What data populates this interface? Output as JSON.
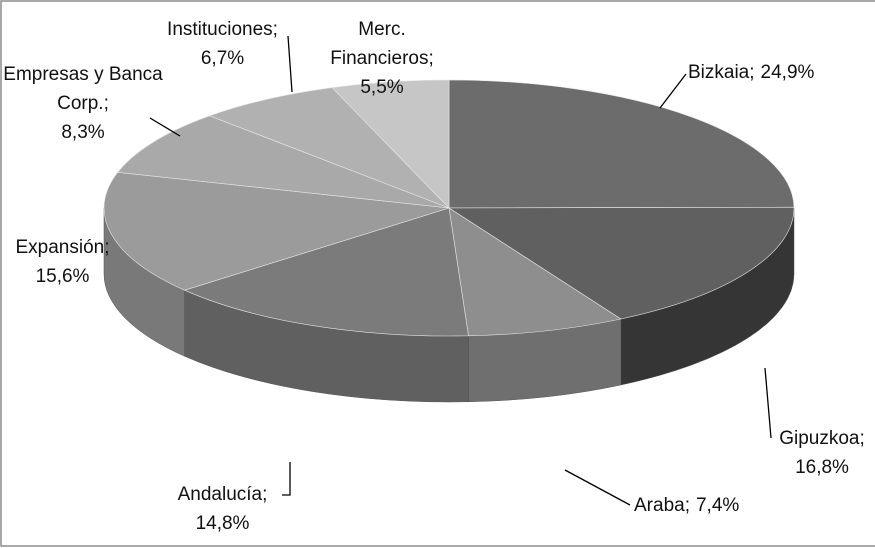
{
  "chart_data": {
    "type": "pie3d",
    "categories": [
      "Bizkaia;",
      "Gipuzkoa;",
      "Araba;",
      "Andalucía;",
      "Expansión;",
      "Empresas y Banca Corp.;",
      "Instituciones;",
      "Merc. Financieros;"
    ],
    "values": [
      24.9,
      16.8,
      7.4,
      14.8,
      15.6,
      8.3,
      6.7,
      5.5
    ],
    "value_labels": [
      "24,9%",
      "16,8%",
      "7,4%",
      "14,8%",
      "15,6%",
      "8,3%",
      "6,7%",
      "5,5%"
    ],
    "colors": [
      "#6c6c6c",
      "#606060",
      "#8e8e8e",
      "#7b7b7b",
      "#9b9b9b",
      "#a9a9a9",
      "#b1b1b1",
      "#c6c6c6"
    ]
  }
}
